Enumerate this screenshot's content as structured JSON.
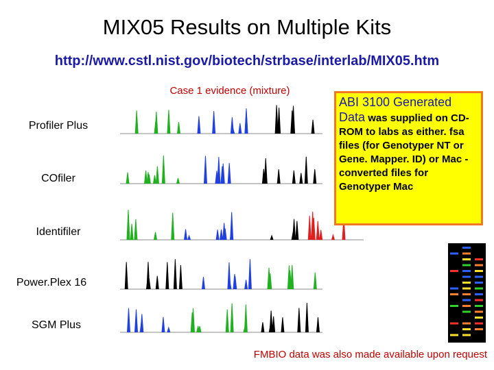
{
  "title": "MIX05 Results on Multiple Kits",
  "url": "http://www.cstl.nist.gov/biotech/strbase/interlab/MIX05.htm",
  "caption": "Case 1 evidence (mixture)",
  "kits": [
    "Profiler Plus",
    "COfiler",
    "Identifiler",
    "Power.Plex 16",
    "SGM Plus"
  ],
  "note": {
    "heading": "ABI 3100 Generated Data",
    "body": "was supplied on CD-ROM to labs as either. fsa files (for Genotyper NT or Gene. Mapper. ID) or Mac -converted files for Genotyper Mac"
  },
  "footer": "FMBIO data was also made available upon request"
}
